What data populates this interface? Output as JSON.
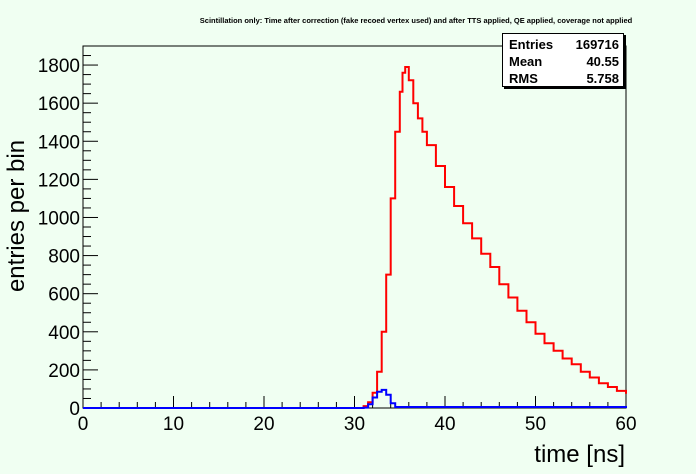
{
  "chart_data": {
    "type": "line",
    "title": "Scintillation only: Time after correction (fake recoed vertex used) and after TTS applied, QE applied, coverage not applied",
    "xlabel": "time [ns]",
    "ylabel": "entries per bin",
    "xlim": [
      0,
      60
    ],
    "ylim": [
      0,
      1900
    ],
    "x_ticks": [
      0,
      10,
      20,
      30,
      40,
      50,
      60
    ],
    "x_tick_labels": [
      "0",
      "10",
      "20",
      "30",
      "40",
      "50",
      "60"
    ],
    "y_ticks": [
      0,
      200,
      400,
      600,
      800,
      1000,
      1200,
      1400,
      1600,
      1800
    ],
    "y_tick_labels": [
      "0",
      "200",
      "400",
      "600",
      "800",
      "1000",
      "1200",
      "1400",
      "1600",
      "1800"
    ],
    "grid": false,
    "series": [
      {
        "color": "#ff0000",
        "x": [
          0,
          30,
          31,
          31.5,
          32,
          32.5,
          33,
          33.5,
          34,
          34.5,
          35,
          35.3,
          35.6,
          36,
          36.5,
          37,
          37.5,
          38,
          39,
          40,
          41,
          42,
          43,
          44,
          45,
          46,
          47,
          48,
          49,
          50,
          51,
          52,
          53,
          54,
          55,
          56,
          57,
          58,
          59,
          60
        ],
        "values": [
          0,
          0,
          10,
          30,
          80,
          190,
          400,
          700,
          1100,
          1450,
          1660,
          1760,
          1790,
          1720,
          1600,
          1520,
          1450,
          1380,
          1270,
          1160,
          1060,
          970,
          890,
          810,
          740,
          650,
          580,
          510,
          450,
          390,
          340,
          300,
          260,
          230,
          190,
          160,
          130,
          110,
          90,
          75
        ]
      },
      {
        "color": "#0000ff",
        "x": [
          0,
          31,
          31.5,
          32,
          32.5,
          33,
          33.5,
          34,
          34.5,
          60
        ],
        "values": [
          0,
          2,
          20,
          55,
          85,
          95,
          70,
          25,
          5,
          0
        ]
      }
    ]
  },
  "stats_box": {
    "entries_label": "Entries",
    "entries_value": "169716",
    "mean_label": "Mean",
    "mean_value": "40.55",
    "rms_label": "RMS",
    "rms_value": "5.758"
  }
}
